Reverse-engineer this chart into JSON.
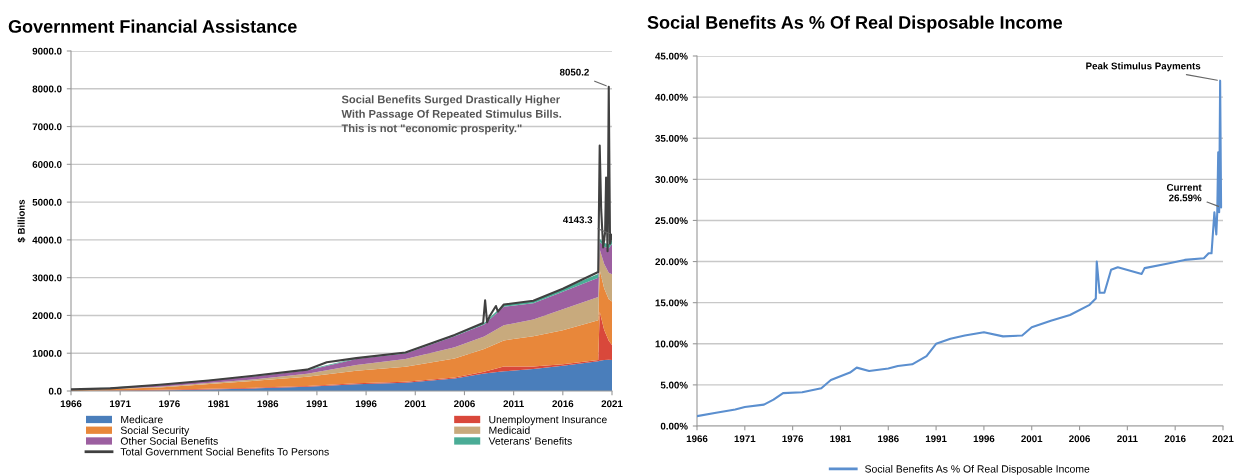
{
  "chart_data": [
    {
      "type": "area",
      "stacked": true,
      "title": "Government Financial Assistance",
      "ylabel": "$ Billions",
      "x": [
        1966,
        1975,
        1985,
        1990,
        1995,
        2000,
        2005,
        2008,
        2010,
        2013,
        2016,
        2019.6,
        2019.75,
        2020.2,
        2020.67,
        2021
      ],
      "series": [
        {
          "name": "Medicare",
          "color": "#4a7ebb",
          "values": [
            0,
            15,
            70,
            110,
            180,
            220,
            330,
            460,
            520,
            580,
            670,
            790,
            800,
            820,
            830,
            820
          ]
        },
        {
          "name": "Unemployment Insurance",
          "color": "#d9483b",
          "values": [
            2,
            15,
            20,
            20,
            25,
            25,
            30,
            50,
            130,
            70,
            35,
            30,
            1300,
            800,
            500,
            400
          ]
        },
        {
          "name": "Social Security",
          "color": "#e8873a",
          "values": [
            20,
            65,
            185,
            250,
            330,
            400,
            500,
            600,
            690,
            800,
            900,
            1050,
            1100,
            1100,
            1100,
            1150
          ]
        },
        {
          "name": "Medicaid",
          "color": "#c8aa7d",
          "values": [
            0,
            15,
            40,
            75,
            150,
            200,
            300,
            330,
            400,
            440,
            560,
            620,
            550,
            650,
            700,
            720
          ]
        },
        {
          "name": "Other Social Benefits",
          "color": "#9c5fa0",
          "values": [
            15,
            40,
            80,
            90,
            160,
            150,
            290,
            320,
            490,
            430,
            460,
            510,
            200,
            450,
            650,
            800
          ]
        },
        {
          "name": "Veterans' Benefits",
          "color": "#4aac96",
          "values": [
            5,
            15,
            20,
            20,
            25,
            25,
            35,
            40,
            60,
            70,
            80,
            100,
            80,
            100,
            110,
            110
          ]
        },
        {
          "name": "Total Government Social Benefits To Persons",
          "type": "line",
          "color": "#404040",
          "x": [
            1966,
            1970,
            1975,
            1980,
            1985,
            1990,
            1992,
            1995,
            2000,
            2005,
            2007.9,
            2008.1,
            2008.3,
            2008.6,
            2009.2,
            2009.4,
            2010,
            2013,
            2016,
            2019.6,
            2019.75,
            2019.9,
            2020.1,
            2020.3,
            2020.4,
            2020.55,
            2020.67,
            2020.8,
            2021
          ],
          "values": [
            42,
            70,
            165,
            280,
            415,
            565,
            760,
            870,
            1020,
            1485,
            1800,
            2400,
            1820,
            2000,
            2250,
            2100,
            2290,
            2390,
            2705,
            3150,
            6500,
            4800,
            3800,
            4200,
            5650,
            3700,
            8050.2,
            3900,
            4143.3
          ]
        }
      ],
      "xlim": [
        1966,
        2021
      ],
      "xticks": [
        1966,
        1971,
        1976,
        1981,
        1986,
        1991,
        1996,
        2001,
        2006,
        2011,
        2016,
        2021
      ],
      "ylim": [
        0,
        9000
      ],
      "yticks": [
        {
          "value": 0,
          "label": "0.0"
        },
        {
          "value": 1000,
          "label": "1000.0"
        },
        {
          "value": 2000,
          "label": "2000.0"
        },
        {
          "value": 3000,
          "label": "3000.0"
        },
        {
          "value": 4000,
          "label": "4000.0"
        },
        {
          "value": 5000,
          "label": "5000.0"
        },
        {
          "value": 6000,
          "label": "6000.0"
        },
        {
          "value": 7000,
          "label": "7000.0"
        },
        {
          "value": 8000,
          "label": "8000.0"
        },
        {
          "value": 9000,
          "label": "9000.0"
        }
      ],
      "grid": "y",
      "legend": "bottom",
      "annotations": [
        "Social Benefits Surged Drastically Higher\nWith Passage Of Repeated Stimulus Bills.\nThis is not \"economic prosperity.\"",
        {
          "text": "8050.2",
          "x": 2020.67,
          "y": 8050.2
        },
        {
          "text": "4143.3",
          "x": 2021,
          "y": 4143.3
        }
      ]
    },
    {
      "type": "line",
      "title": "Social Benefits As % Of Real Disposable Income",
      "x": [
        1966,
        1968,
        1970,
        1971,
        1973,
        1974,
        1975,
        1977,
        1979,
        1980,
        1982,
        1982.7,
        1984,
        1986,
        1987,
        1988.5,
        1990,
        1991,
        1992.5,
        1994,
        1996,
        1998,
        2000,
        2001,
        2003,
        2005,
        2007,
        2007.7,
        2007.8,
        2008.1,
        2008.6,
        2009.3,
        2010,
        2012.5,
        2012.8,
        2015,
        2017,
        2019,
        2019.5,
        2019.8,
        2020.1,
        2020.3,
        2020.4,
        2020.5,
        2020.6,
        2020.7,
        2020.8
      ],
      "series": [
        {
          "name": "Social Benefits As % Of Real Disposable Income",
          "color": "#5b8fcf",
          "values": [
            1.2,
            1.6,
            2.0,
            2.3,
            2.6,
            3.2,
            4.0,
            4.1,
            4.6,
            5.6,
            6.5,
            7.1,
            6.7,
            7.0,
            7.3,
            7.5,
            8.5,
            10.0,
            10.6,
            11.0,
            11.4,
            10.9,
            11.0,
            12.0,
            12.8,
            13.5,
            14.7,
            15.5,
            20.0,
            16.2,
            16.2,
            19.0,
            19.3,
            18.5,
            19.2,
            19.7,
            20.2,
            20.4,
            21.0,
            21.0,
            26.0,
            23.3,
            26.0,
            33.3,
            26.0,
            42.0,
            26.59
          ]
        }
      ],
      "xlim": [
        1966,
        2021
      ],
      "xticks": [
        1966,
        1971,
        1976,
        1981,
        1986,
        1991,
        1996,
        2001,
        2006,
        2011,
        2016,
        2021
      ],
      "ylim": [
        0,
        45
      ],
      "yticks": [
        {
          "value": 0,
          "label": "0.00%"
        },
        {
          "value": 5,
          "label": "5.00%"
        },
        {
          "value": 10,
          "label": "10.00%"
        },
        {
          "value": 15,
          "label": "15.00%"
        },
        {
          "value": 20,
          "label": "20.00%"
        },
        {
          "value": 25,
          "label": "25.00%"
        },
        {
          "value": 30,
          "label": "30.00%"
        },
        {
          "value": 35,
          "label": "35.00%"
        },
        {
          "value": 40,
          "label": "40.00%"
        },
        {
          "value": 45,
          "label": "45.00%"
        }
      ],
      "grid": "y",
      "legend": "bottom",
      "annotations": [
        {
          "text": "Peak Stimulus Payments",
          "x": 2020.7,
          "y": 42.0
        },
        {
          "text": "Current\n26.59%",
          "x": 2020.8,
          "y": 26.59
        }
      ]
    }
  ]
}
